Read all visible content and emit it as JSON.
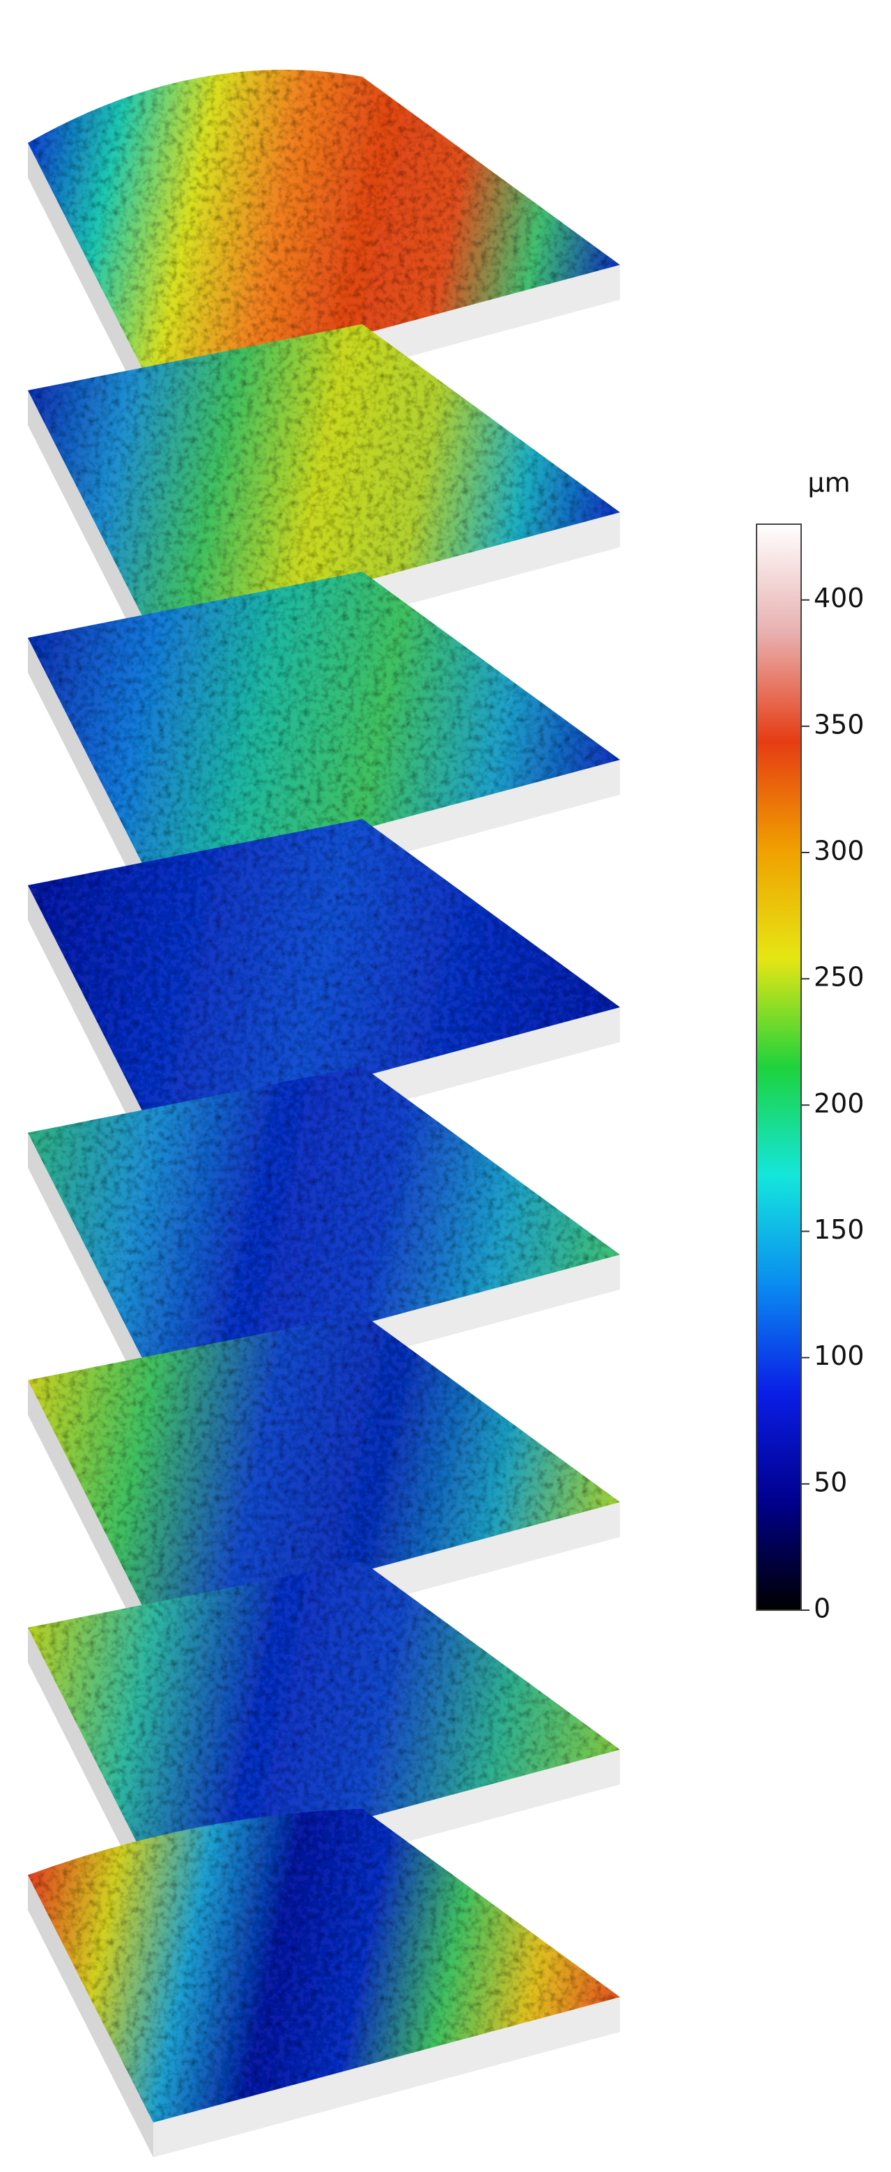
{
  "chart_data": {
    "type": "surface",
    "colorbar": {
      "label": "µm",
      "lim": [
        0,
        430
      ],
      "ticks": [
        0,
        50,
        100,
        150,
        200,
        250,
        300,
        350,
        400
      ],
      "colors": [
        "#000000",
        "#00008c",
        "#0a1ee6",
        "#0a8cf0",
        "#14e6dc",
        "#1ed23c",
        "#e6e614",
        "#f0a000",
        "#e63c14",
        "#e8b0b0",
        "#ffffff"
      ]
    }
  }
}
